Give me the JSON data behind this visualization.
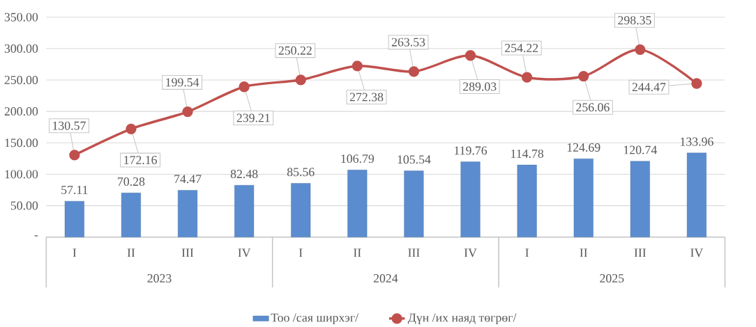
{
  "chart_data": {
    "type": "bar",
    "categories": [
      "I",
      "II",
      "III",
      "IV",
      "I",
      "II",
      "III",
      "IV",
      "I",
      "II",
      "III",
      "IV"
    ],
    "annotations": [
      "2023",
      "2024",
      "2025"
    ],
    "series": [
      {
        "name": "Тоо /сая ширхэг/",
        "color": "#5b8ccf",
        "values": [
          57.11,
          70.28,
          74.47,
          82.48,
          85.56,
          106.79,
          105.54,
          119.76,
          114.78,
          124.69,
          120.74,
          133.96
        ]
      },
      {
        "name": "Дүн /их наяд төгрөг/",
        "type": "line",
        "color": "#c0504d",
        "marker": "circle",
        "line_style": "solid",
        "values": [
          130.57,
          172.16,
          199.54,
          239.21,
          250.22,
          272.38,
          263.53,
          289.03,
          254.22,
          256.06,
          298.35,
          244.47
        ]
      }
    ],
    "ylim": [
      0,
      350
    ],
    "yticks": [
      {
        "value": 0,
        "label": "-"
      },
      {
        "value": 50,
        "label": "50.00"
      },
      {
        "value": 100,
        "label": "100.00"
      },
      {
        "value": 150,
        "label": "150.00"
      },
      {
        "value": 200,
        "label": "200.00"
      },
      {
        "value": 250,
        "label": "250.00"
      },
      {
        "value": 300,
        "label": "300.00"
      },
      {
        "value": 350,
        "label": "350.00"
      }
    ],
    "grid": "y",
    "legend": "bottom",
    "data_labels": true
  }
}
